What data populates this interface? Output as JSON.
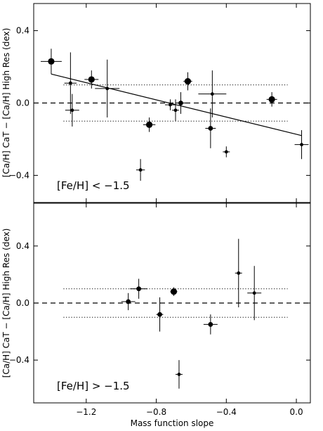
{
  "chart_data": {
    "type": "scatter",
    "xlabel": "Mass function slope",
    "ylabel": "[Ca/H] CaT − [Ca/H] High Res (dex)",
    "xlim": [
      -1.5,
      0.08
    ],
    "x_ticks": [
      -1.2,
      -0.8,
      -0.4,
      0.0
    ],
    "x_tick_labels": [
      "−1.2",
      "−0.8",
      "−0.4",
      "0.0"
    ],
    "y_ticks": [
      0.4,
      0.0,
      -0.4
    ],
    "y_tick_labels": [
      "0.4",
      "0.0",
      "−0.4"
    ],
    "panels": [
      {
        "label": "[Fe/H] < −1.5",
        "ylim": [
          -0.55,
          0.55
        ],
        "reference_lines": {
          "dashed": 0.0,
          "dotted": [
            0.1,
            -0.1
          ]
        },
        "fit_line": {
          "x": [
            -1.4,
            0.03
          ],
          "y": [
            0.16,
            -0.18
          ]
        },
        "points": [
          {
            "x": -1.4,
            "y": 0.23,
            "xerr": 0.06,
            "yerr": 0.07,
            "size": "large"
          },
          {
            "x": -1.29,
            "y": 0.11,
            "xerr": 0.035,
            "yerr": 0.17,
            "size": "small"
          },
          {
            "x": -1.28,
            "y": -0.04,
            "xerr": 0.04,
            "yerr": 0.09,
            "size": "small"
          },
          {
            "x": -1.17,
            "y": 0.13,
            "xerr": 0.04,
            "yerr": 0.05,
            "size": "large"
          },
          {
            "x": -1.08,
            "y": 0.08,
            "xerr": 0.07,
            "yerr": 0.16,
            "size": "small"
          },
          {
            "x": -0.89,
            "y": -0.37,
            "xerr": 0.025,
            "yerr": 0.06,
            "size": "small"
          },
          {
            "x": -0.84,
            "y": -0.12,
            "xerr": 0.035,
            "yerr": 0.04,
            "size": "large"
          },
          {
            "x": -0.72,
            "y": -0.01,
            "xerr": 0.03,
            "yerr": 0.03,
            "size": "small"
          },
          {
            "x": -0.69,
            "y": -0.04,
            "xerr": 0.02,
            "yerr": 0.06,
            "size": "small"
          },
          {
            "x": -0.66,
            "y": 0.0,
            "xerr": 0.03,
            "yerr": 0.06,
            "size": "medium"
          },
          {
            "x": -0.62,
            "y": 0.12,
            "xerr": 0.025,
            "yerr": 0.05,
            "size": "large"
          },
          {
            "x": -0.49,
            "y": -0.14,
            "xerr": 0.03,
            "yerr": 0.11,
            "size": "medium"
          },
          {
            "x": -0.48,
            "y": 0.05,
            "xerr": 0.08,
            "yerr": 0.13,
            "size": "small"
          },
          {
            "x": -0.4,
            "y": -0.27,
            "xerr": 0.02,
            "yerr": 0.03,
            "size": "small"
          },
          {
            "x": -0.14,
            "y": 0.02,
            "xerr": 0.03,
            "yerr": 0.04,
            "size": "large"
          },
          {
            "x": 0.03,
            "y": -0.23,
            "xerr": 0.04,
            "yerr": 0.08,
            "size": "small"
          }
        ]
      },
      {
        "label": "[Fe/H] > −1.5",
        "ylim": [
          -0.7,
          0.7
        ],
        "reference_lines": {
          "dashed": 0.0,
          "dotted": [
            0.1,
            -0.1
          ]
        },
        "points": [
          {
            "x": -0.96,
            "y": 0.01,
            "xerr": 0.04,
            "yerr": 0.06,
            "size": "medium"
          },
          {
            "x": -0.9,
            "y": 0.1,
            "xerr": 0.05,
            "yerr": 0.07,
            "size": "medium"
          },
          {
            "x": -0.7,
            "y": 0.08,
            "xerr": 0.02,
            "yerr": 0.03,
            "size": "large"
          },
          {
            "x": -0.78,
            "y": -0.08,
            "xerr": 0.02,
            "yerr": 0.12,
            "size": "medium"
          },
          {
            "x": -0.67,
            "y": -0.5,
            "xerr": 0.02,
            "yerr": 0.1,
            "size": "small"
          },
          {
            "x": -0.49,
            "y": -0.15,
            "xerr": 0.04,
            "yerr": 0.07,
            "size": "medium"
          },
          {
            "x": -0.33,
            "y": 0.21,
            "xerr": 0.02,
            "yerr": 0.24,
            "size": "small"
          },
          {
            "x": -0.24,
            "y": 0.07,
            "xerr": 0.04,
            "yerr": 0.19,
            "size": "small"
          }
        ]
      }
    ]
  }
}
